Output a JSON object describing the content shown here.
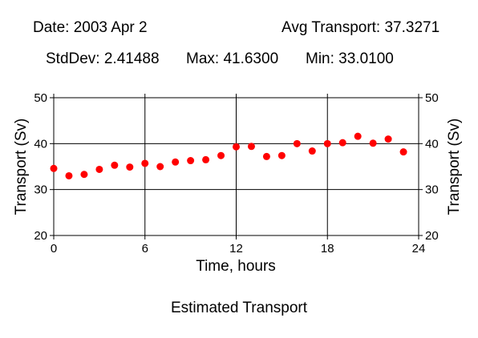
{
  "header": {
    "date": "Date: 2003 Apr 2",
    "avg": "Avg Transport: 37.3271",
    "stddev": "StdDev: 2.41488",
    "max": "Max: 41.6300",
    "min": "Min: 33.0100"
  },
  "footer": {
    "caption": "Estimated Transport"
  },
  "colors": {
    "point": "#ff0000",
    "axis": "#000000",
    "grid": "#000000"
  },
  "chart_data": {
    "type": "scatter",
    "title": "",
    "xlabel": "Time, hours",
    "ylabel": "Transport (Sv)",
    "ylabel_right": "Transport (Sv)",
    "xlim": [
      0,
      24
    ],
    "ylim": [
      20,
      50
    ],
    "x_ticks": [
      "0",
      "6",
      "12",
      "18",
      "24"
    ],
    "y_ticks": [
      "20",
      "30",
      "40",
      "50"
    ],
    "grid": true,
    "x": [
      0,
      1,
      2,
      3,
      4,
      5,
      6,
      7,
      8,
      9,
      10,
      11,
      12,
      13,
      14,
      15,
      16,
      17,
      18,
      19,
      20,
      21,
      22,
      23
    ],
    "y": [
      34.6,
      33.0,
      33.3,
      34.4,
      35.3,
      34.9,
      35.7,
      35.0,
      36.0,
      36.3,
      36.5,
      37.4,
      39.3,
      39.4,
      37.2,
      37.4,
      40.0,
      38.4,
      40.0,
      40.2,
      41.6,
      40.1,
      41.0,
      38.2
    ]
  }
}
